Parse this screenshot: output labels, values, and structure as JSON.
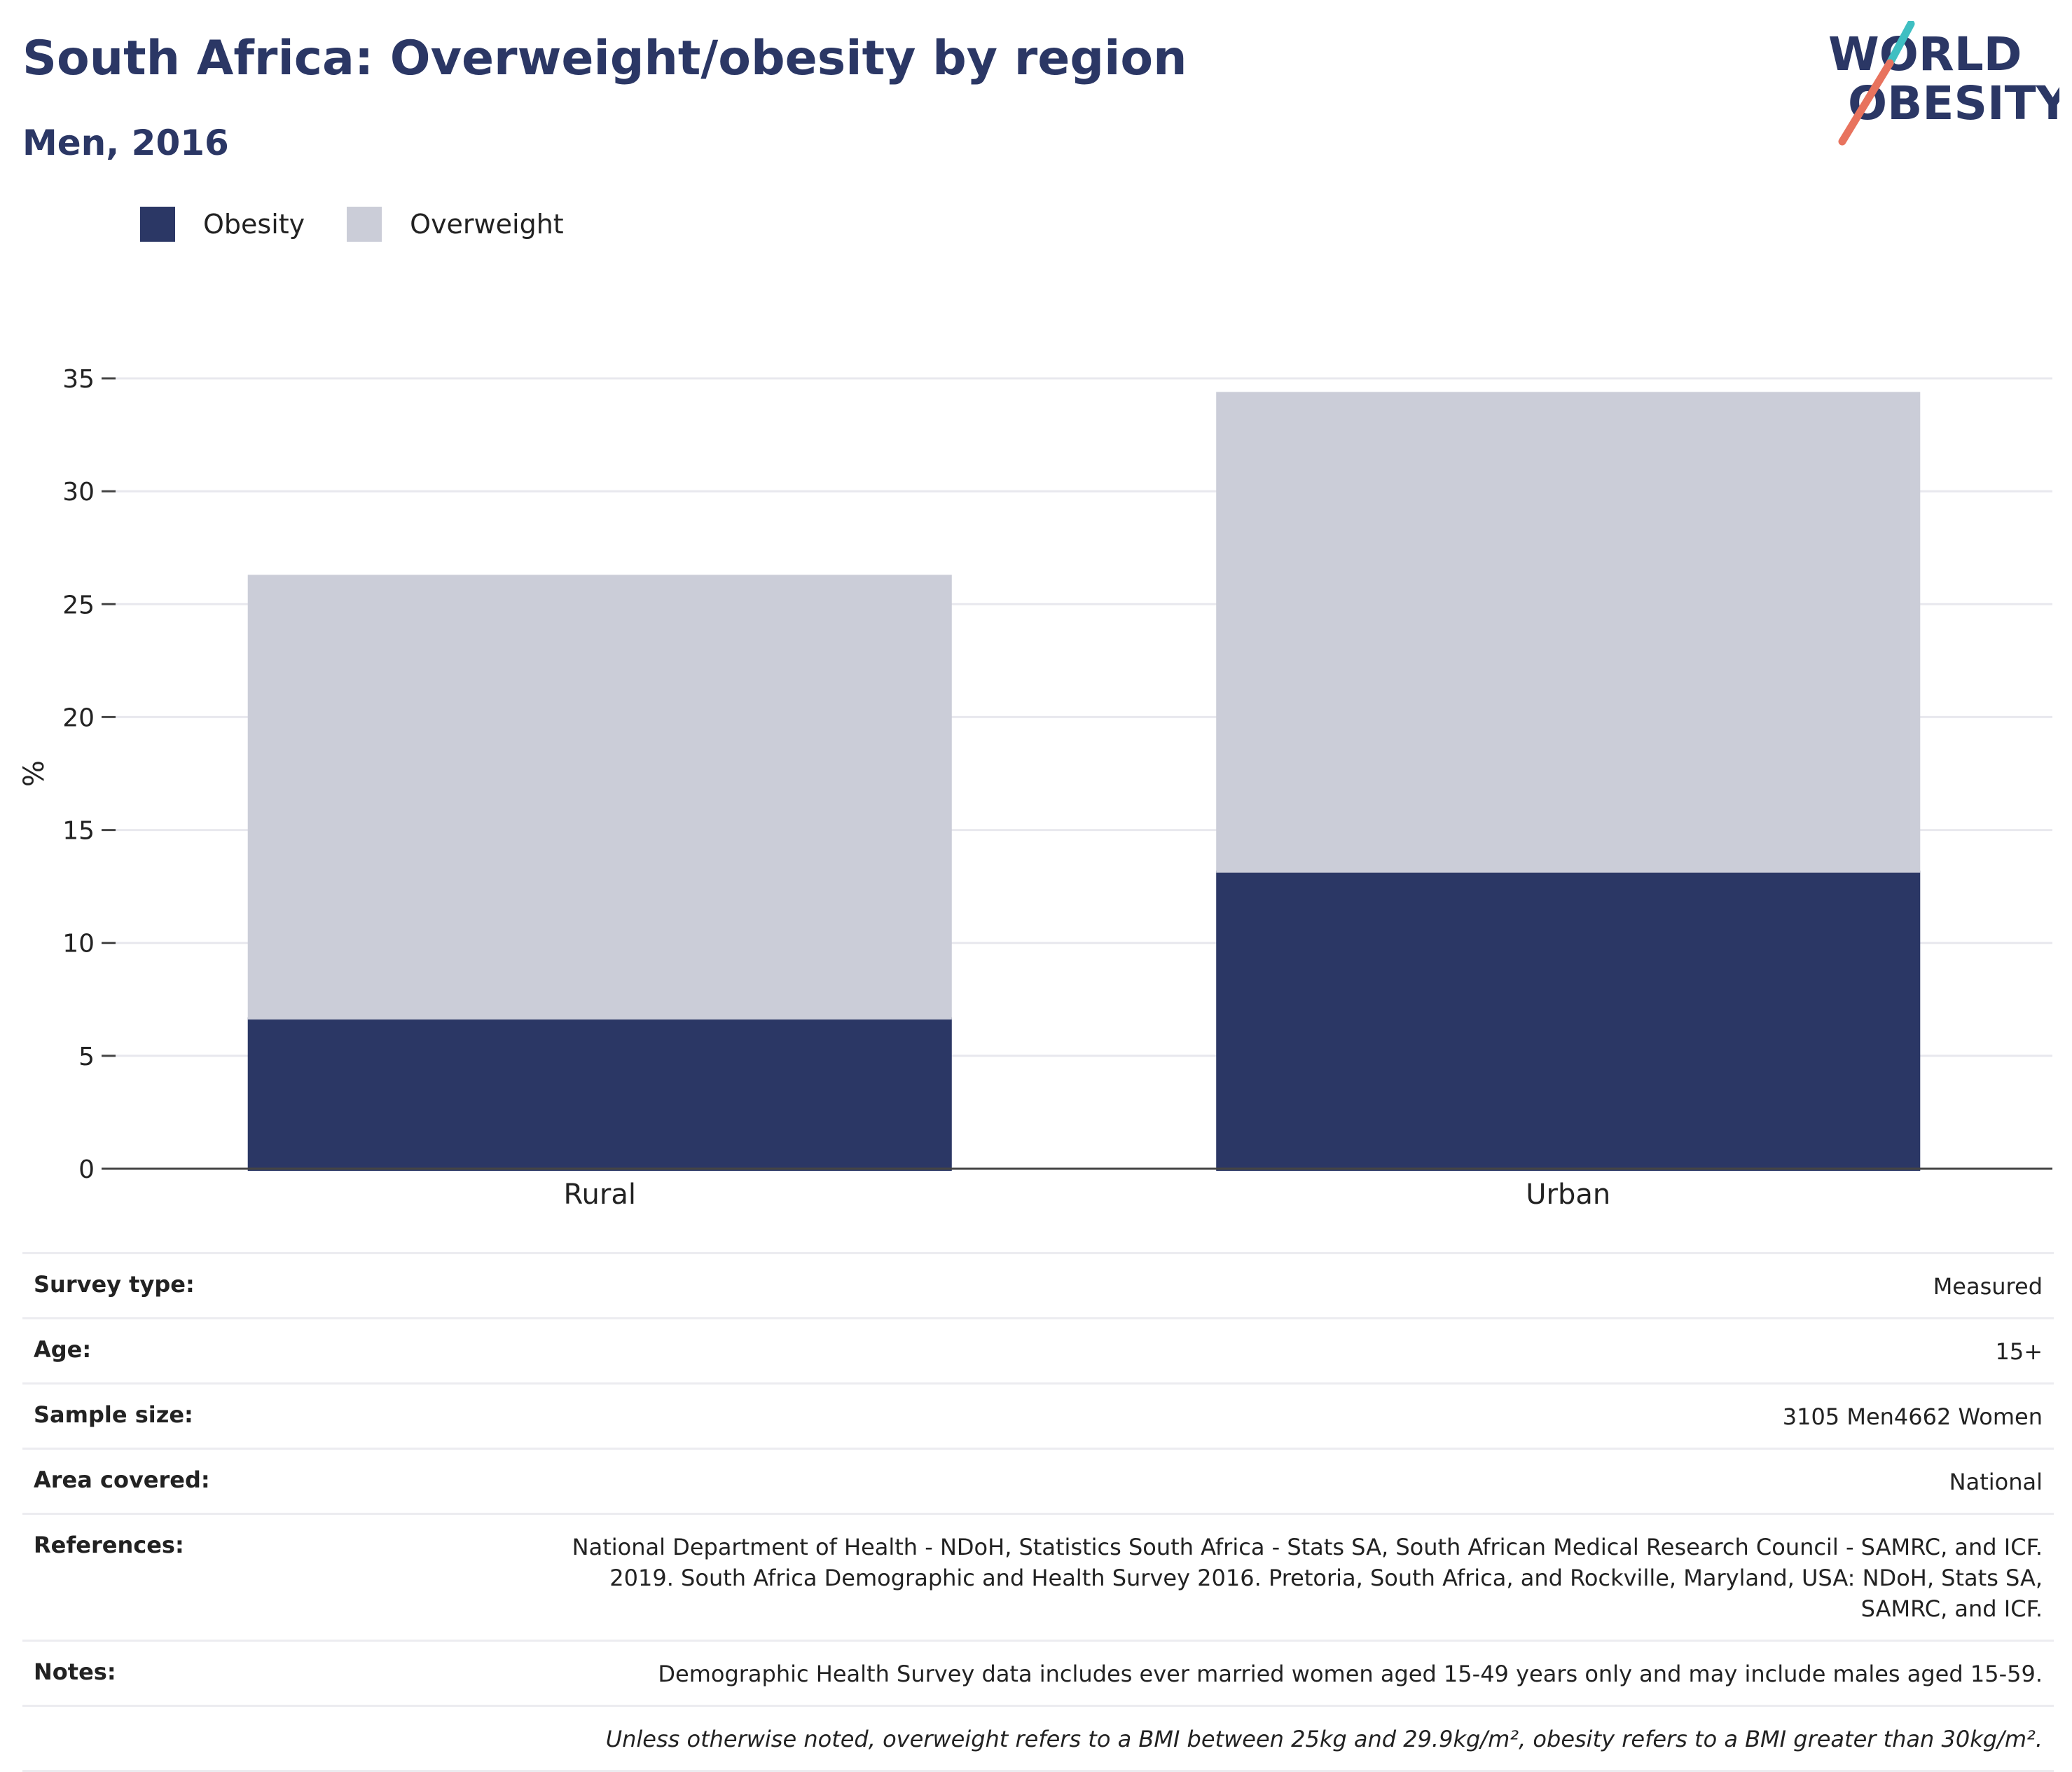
{
  "header": {
    "title": "South Africa: Overweight/obesity by region",
    "subtitle": "Men, 2016"
  },
  "logo": {
    "line1": "WORLD",
    "line2": "OBESITY",
    "color": "#2b3765",
    "accent1": "#3fbfc2",
    "accent2": "#e8735e"
  },
  "legend": [
    {
      "label": "Obesity",
      "color": "#2b3765"
    },
    {
      "label": "Overweight",
      "color": "#cbcdd8"
    }
  ],
  "chart_data": {
    "type": "bar",
    "stacked": true,
    "categories": [
      "Rural",
      "Urban"
    ],
    "series": [
      {
        "name": "Obesity",
        "values": [
          6.7,
          13.2
        ],
        "color": "#2b3765"
      },
      {
        "name": "Overweight",
        "values": [
          19.6,
          21.2
        ],
        "color": "#cbcdd8"
      }
    ],
    "ylabel": "%",
    "ylim": [
      0,
      35
    ],
    "yticks": [
      0,
      5,
      10,
      15,
      20,
      25,
      30,
      35
    ],
    "grid": true,
    "legend_position": "top-left"
  },
  "info": {
    "rows": [
      {
        "key": "Survey type:",
        "value": "Measured"
      },
      {
        "key": "Age:",
        "value": "15+"
      },
      {
        "key": "Sample size:",
        "value": "3105 Men4662 Women"
      },
      {
        "key": "Area covered:",
        "value": "National"
      },
      {
        "key": "References:",
        "value": "National Department of Health - NDoH, Statistics South Africa - Stats SA, South African Medical Research Council - SAMRC, and ICF. 2019. South Africa Demographic and Health Survey 2016. Pretoria, South Africa, and Rockville, Maryland, USA: NDoH, Stats SA, SAMRC, and ICF."
      },
      {
        "key": "Notes:",
        "value": "Demographic Health Survey data includes ever married women aged 15-49 years only and may include males aged 15-59."
      }
    ],
    "footnote": "Unless otherwise noted, overweight refers to a BMI between 25kg and 29.9kg/m², obesity refers to a BMI greater than 30kg/m²."
  }
}
